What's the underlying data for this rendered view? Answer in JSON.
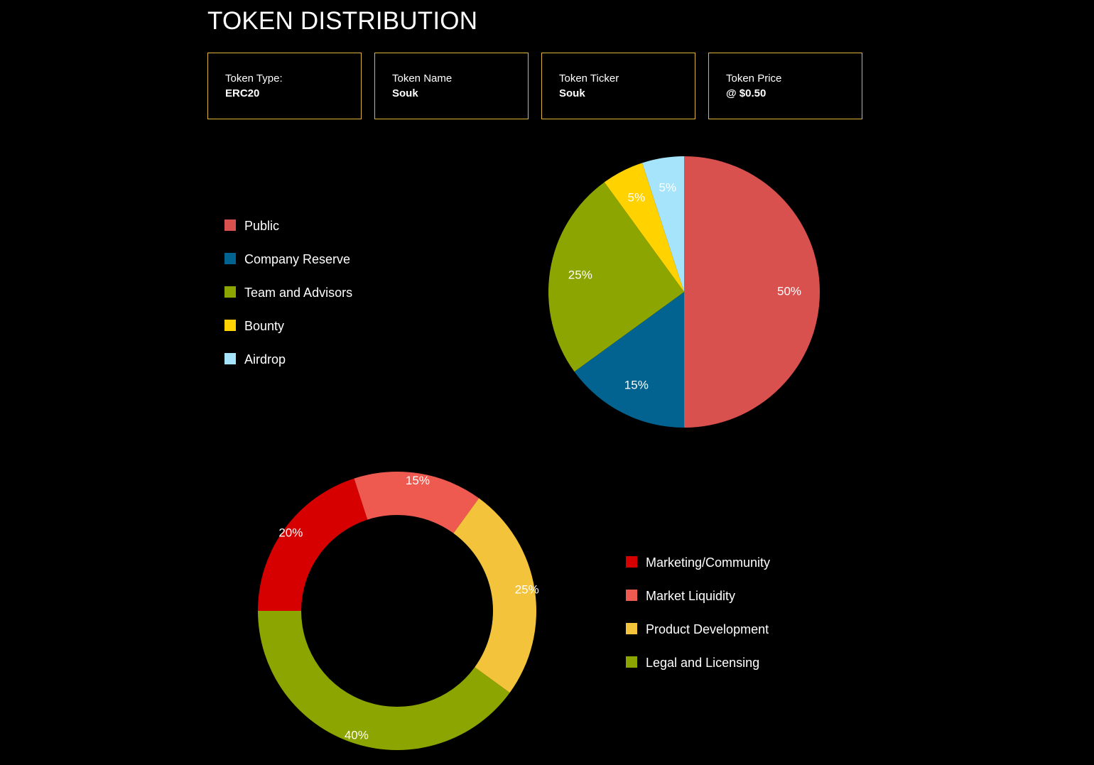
{
  "page": {
    "title": "TOKEN DISTRIBUTION"
  },
  "info_cards": [
    {
      "label": "Token Type:",
      "value": "ERC20"
    },
    {
      "label": "Token Name",
      "value": "Souk"
    },
    {
      "label": "Token Ticker",
      "value": "Souk"
    },
    {
      "label": "Token Price",
      "value": "@ $0.50"
    }
  ],
  "colors": {
    "background": "#000000",
    "card_border": "#e0b63a"
  },
  "chart_data": [
    {
      "type": "pie",
      "title": "",
      "legend_position": "left",
      "categories": [
        "Public",
        "Company Reserve",
        "Team and Advisors",
        "Bounty",
        "Airdrop"
      ],
      "values": [
        50,
        15,
        25,
        5,
        5
      ],
      "labels": [
        "50%",
        "15%",
        "25%",
        "5%",
        "5%"
      ],
      "colors": [
        "#d9514e",
        "#036390",
        "#8da500",
        "#ffd200",
        "#a5e4fb"
      ]
    },
    {
      "type": "pie",
      "donut": true,
      "title": "",
      "legend_position": "right",
      "categories": [
        "Marketing/Community",
        "Market Liquidity",
        "Product Development",
        "Legal and Licensing"
      ],
      "values": [
        20,
        15,
        25,
        40
      ],
      "labels": [
        "20%",
        "15%",
        "25%",
        "40%"
      ],
      "colors": [
        "#d70000",
        "#ef5a50",
        "#f3c43b",
        "#8da500"
      ]
    }
  ]
}
